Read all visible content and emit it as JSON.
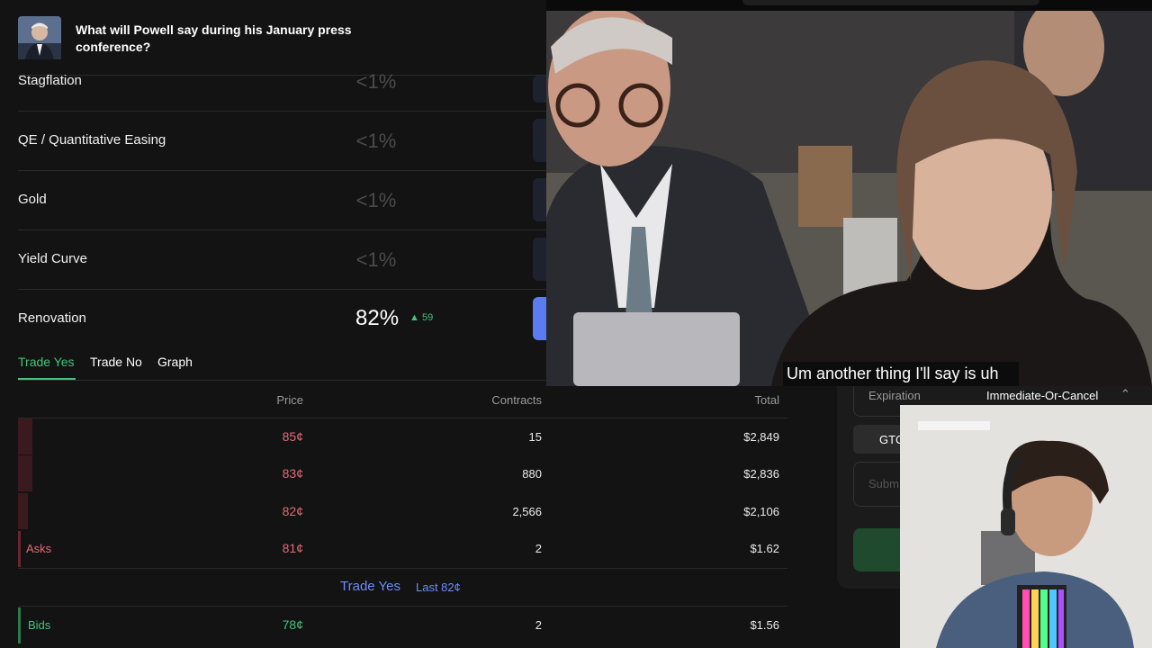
{
  "header": {
    "title": "What will Powell say during his January press conference?"
  },
  "markets": [
    {
      "name": "Stagflation",
      "chance": "<1%"
    },
    {
      "name": "QE / Quantitative Easing",
      "chance": "<1%"
    },
    {
      "name": "Gold",
      "chance": "<1%"
    },
    {
      "name": "Yield Curve",
      "chance": "<1%"
    },
    {
      "name": "Renovation",
      "chance": "82%",
      "change": "59"
    }
  ],
  "tabs": [
    "Trade Yes",
    "Trade No",
    "Graph"
  ],
  "orderbook": {
    "columns": [
      "Price",
      "Contracts",
      "Total"
    ],
    "asks_label": "Asks",
    "asks": [
      {
        "price": "85¢",
        "contracts": "15",
        "total": "$2,849"
      },
      {
        "price": "83¢",
        "contracts": "880",
        "total": "$2,836"
      },
      {
        "price": "82¢",
        "contracts": "2,566",
        "total": "$2,106"
      },
      {
        "price": "81¢",
        "contracts": "2",
        "total": "$1.62"
      }
    ],
    "spread": {
      "title": "Trade Yes",
      "last": "Last 82¢"
    },
    "bids_label": "Bids",
    "bids": [
      {
        "price": "78¢",
        "contracts": "2",
        "total": "$1.56"
      }
    ]
  },
  "order_panel": {
    "expiration_label": "Expiration",
    "expiration_value": "Immediate-Or-Cancel",
    "gtc": "GTC",
    "submit": "Subm"
  },
  "video": {
    "subtitle": "Um another thing I'll say is uh"
  }
}
